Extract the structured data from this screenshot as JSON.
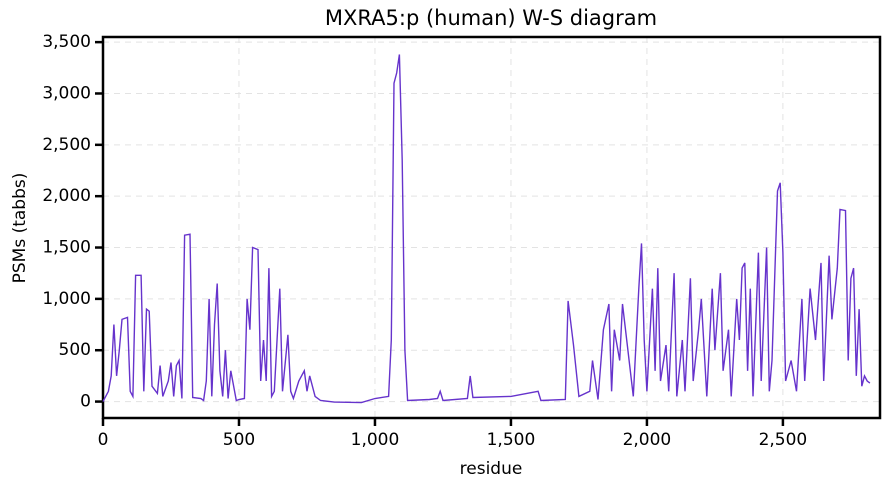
{
  "chart_data": {
    "type": "line",
    "title": "MXRA5:p (human) W-S diagram",
    "x_label": "residue",
    "y_label": "PSMs (tabbs)",
    "xlim": [
      0,
      2857
    ],
    "ylim": [
      -160,
      3550
    ],
    "xticks": [
      0,
      500,
      {
        "value": 1000,
        "label": "1,000"
      },
      {
        "value": 1500,
        "label": "1,500"
      },
      {
        "value": 2000,
        "label": "2,000"
      },
      {
        "value": 2500,
        "label": "2,500"
      }
    ],
    "yticks": [
      0,
      500,
      {
        "value": 1000,
        "label": "1,000"
      },
      {
        "value": 1500,
        "label": "1,500"
      },
      {
        "value": 2000,
        "label": "2,000"
      },
      {
        "value": 2500,
        "label": "2,500"
      },
      {
        "value": 3000,
        "label": "3,000"
      },
      {
        "value": 3500,
        "label": "3,500"
      }
    ],
    "grid": true,
    "x": [
      0,
      20,
      30,
      40,
      50,
      60,
      70,
      90,
      100,
      110,
      120,
      140,
      150,
      160,
      170,
      180,
      200,
      210,
      220,
      240,
      250,
      260,
      270,
      280,
      290,
      300,
      320,
      330,
      360,
      370,
      380,
      390,
      400,
      410,
      420,
      430,
      440,
      450,
      460,
      470,
      490,
      500,
      520,
      530,
      540,
      550,
      570,
      580,
      590,
      600,
      610,
      620,
      630,
      650,
      660,
      680,
      690,
      700,
      720,
      740,
      750,
      760,
      780,
      800,
      850,
      950,
      1000,
      1050,
      1060,
      1070,
      1080,
      1090,
      1100,
      1110,
      1120,
      1200,
      1230,
      1240,
      1250,
      1340,
      1350,
      1360,
      1500,
      1600,
      1610,
      1700,
      1710,
      1730,
      1750,
      1790,
      1800,
      1820,
      1840,
      1860,
      1870,
      1880,
      1900,
      1910,
      1930,
      1950,
      1970,
      1980,
      1990,
      2000,
      2020,
      2030,
      2040,
      2050,
      2070,
      2080,
      2100,
      2110,
      2130,
      2140,
      2160,
      2170,
      2190,
      2200,
      2220,
      2240,
      2250,
      2270,
      2280,
      2300,
      2310,
      2330,
      2340,
      2350,
      2360,
      2370,
      2380,
      2390,
      2410,
      2420,
      2440,
      2450,
      2460,
      2480,
      2490,
      2500,
      2510,
      2530,
      2550,
      2570,
      2580,
      2600,
      2620,
      2640,
      2650,
      2670,
      2680,
      2700,
      2710,
      2730,
      2740,
      2750,
      2760,
      2770,
      2780,
      2790,
      2800,
      2810,
      2820
    ],
    "series": [
      {
        "name": "PSMs",
        "color": "#6633cc",
        "values": [
          0,
          100,
          250,
          750,
          250,
          500,
          800,
          820,
          100,
          50,
          1230,
          1230,
          100,
          900,
          880,
          150,
          80,
          350,
          50,
          200,
          380,
          50,
          350,
          400,
          30,
          1620,
          1630,
          40,
          30,
          10,
          200,
          1000,
          50,
          750,
          1150,
          300,
          50,
          500,
          30,
          300,
          10,
          20,
          30,
          1000,
          700,
          1500,
          1480,
          200,
          600,
          200,
          1300,
          50,
          100,
          1100,
          100,
          650,
          100,
          30,
          200,
          300,
          100,
          250,
          50,
          10,
          -5,
          -10,
          30,
          50,
          600,
          3100,
          3200,
          3380,
          2350,
          500,
          10,
          20,
          30,
          100,
          10,
          30,
          250,
          40,
          50,
          100,
          10,
          20,
          980,
          550,
          50,
          100,
          400,
          20,
          700,
          950,
          100,
          700,
          400,
          950,
          500,
          50,
          1100,
          1540,
          600,
          100,
          1100,
          300,
          1300,
          200,
          550,
          100,
          1250,
          50,
          600,
          100,
          1200,
          200,
          700,
          1000,
          50,
          1100,
          500,
          1250,
          300,
          700,
          50,
          1000,
          600,
          1300,
          1350,
          300,
          1100,
          50,
          1450,
          200,
          1500,
          100,
          400,
          2050,
          2130,
          1450,
          200,
          400,
          100,
          1000,
          200,
          1100,
          600,
          1350,
          200,
          1420,
          800,
          1300,
          1870,
          1860,
          400,
          1200,
          1300,
          250,
          900,
          150,
          250,
          200,
          180
        ]
      }
    ]
  }
}
